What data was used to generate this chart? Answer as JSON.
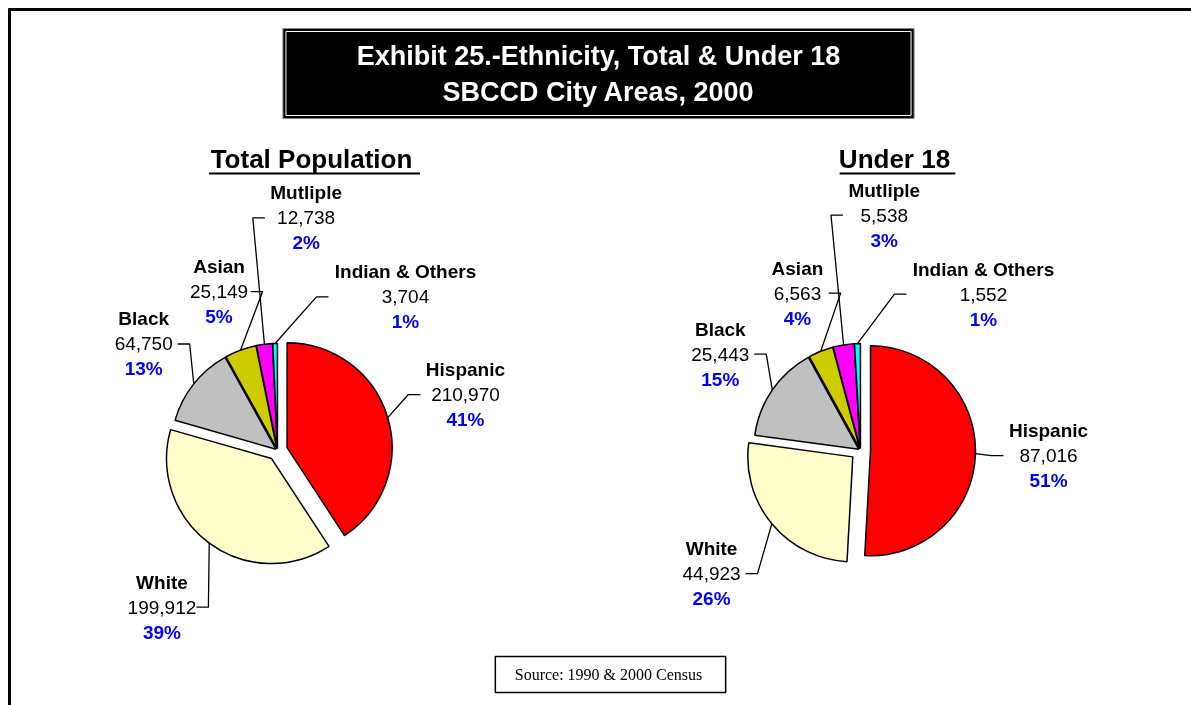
{
  "chart_data": [
    {
      "type": "pie",
      "title": "Exhibit 25.-Ethnicity, Total & Under 18\nSBCCD City Areas, 2000",
      "subtitle": "Total Population",
      "categories": [
        "Hispanic",
        "White",
        "Black",
        "Asian",
        "Mutliple",
        "Indian & Others"
      ],
      "values": [
        210970,
        199912,
        64750,
        25149,
        12738,
        3704
      ],
      "value_labels": [
        "210,970",
        "199,912",
        "64,750",
        "25,149",
        "12,738",
        "3,704"
      ],
      "colors": [
        "#ff0000",
        "#ffffcc",
        "#c0c0c0",
        "#cccc00",
        "#ff00ff",
        "#00ffff"
      ],
      "annotations": [
        "Source:  1990 & 2000 Census",
        {
          "text": "41%",
          "x": "Hispanic"
        },
        {
          "text": "39%",
          "x": "White"
        },
        {
          "text": "13%",
          "x": "Black"
        },
        {
          "text": "5%",
          "x": "Asian"
        },
        {
          "text": "2%",
          "x": "Mutliple"
        },
        {
          "text": "1%",
          "x": "Indian & Others"
        }
      ]
    },
    {
      "type": "pie",
      "subtitle": "Under 18",
      "categories": [
        "Hispanic",
        "White",
        "Black",
        "Asian",
        "Mutliple",
        "Indian & Others"
      ],
      "values": [
        87016,
        44923,
        25443,
        6563,
        5538,
        1552
      ],
      "value_labels": [
        "87,016",
        "44,923",
        "25,443",
        "6,563",
        "5,538",
        "1,552"
      ],
      "colors": [
        "#ff0000",
        "#ffffcc",
        "#c0c0c0",
        "#cccc00",
        "#ff00ff",
        "#00ffff"
      ],
      "annotations": [
        {
          "text": "51%",
          "x": "Hispanic"
        },
        {
          "text": "26%",
          "x": "White"
        },
        {
          "text": "15%",
          "x": "Black"
        },
        {
          "text": "4%",
          "x": "Asian"
        },
        {
          "text": "3%",
          "x": "Mutliple"
        },
        {
          "text": "1%",
          "x": "Indian & Others"
        }
      ]
    }
  ]
}
